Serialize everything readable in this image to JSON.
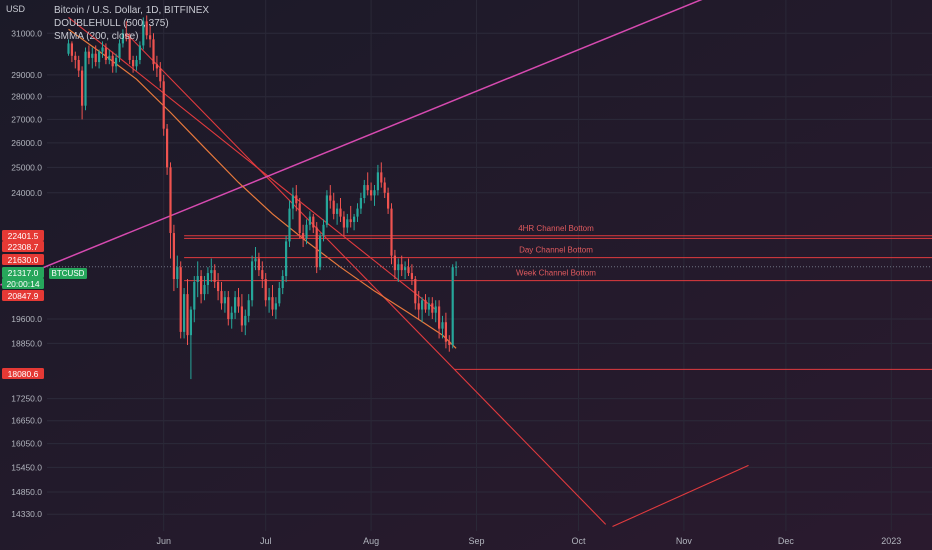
{
  "header": {
    "title": "Bitcoin / U.S. Dollar, 1D, BITFINEX",
    "indicator1": "DOUBLEHULL (500, 375)",
    "indicator2": "SMMA (200, close)",
    "unit": "USD"
  },
  "colors": {
    "background": "#1e1b2b",
    "up_candle": "#26a69a",
    "down_candle": "#ef5350",
    "channel_lines": "#e03a3e",
    "magenta_trend": "#d64ab0",
    "hull_curve": "#e8793c",
    "price_badge": "#26a65b",
    "level_badge": "#e53935"
  },
  "chart_data": {
    "type": "candlestick",
    "symbol": "BTCUSD",
    "x_ticks": [
      "Jun",
      "Jul",
      "Aug",
      "Sep",
      "Oct",
      "Nov",
      "Dec",
      "2023"
    ],
    "y_ticks": [
      31000.0,
      29000.0,
      28000.0,
      27000.0,
      26000.0,
      25000.0,
      24000.0,
      19600.0,
      18850.0,
      17250.0,
      16650.0,
      16050.0,
      15450.0,
      14850.0,
      14330.0
    ],
    "y_range": [
      13950,
      32700
    ],
    "y_scale": "log",
    "price_badges": [
      {
        "value": "22401.5",
        "kind": "level"
      },
      {
        "value": "22308.7",
        "kind": "level"
      },
      {
        "value": "21630.0",
        "kind": "level"
      },
      {
        "value": "21317.0",
        "kind": "price"
      },
      {
        "value": "20:00:14",
        "kind": "countdown"
      },
      {
        "value": "20847.9",
        "kind": "level"
      },
      {
        "value": "18080.6",
        "kind": "level"
      }
    ],
    "horizontal_levels": [
      {
        "label": "4HR Channel Bottom",
        "value": 22401.5
      },
      {
        "label": "Day Channel Bottom",
        "value": 21630.0
      },
      {
        "label": "Week Channel Bottom",
        "value": 20847.9
      },
      {
        "label": "",
        "value": 22308.7
      },
      {
        "label": "",
        "value": 18080.6
      }
    ],
    "ohlc_daily_start": "2022-05-04",
    "ohlc": [
      [
        30000,
        30700,
        29900,
        30500
      ],
      [
        30500,
        30600,
        29600,
        29900
      ],
      [
        29900,
        30100,
        29300,
        29700
      ],
      [
        29700,
        29900,
        28900,
        29200
      ],
      [
        29200,
        29400,
        27000,
        27600
      ],
      [
        27600,
        30300,
        27400,
        30100
      ],
      [
        30100,
        30400,
        29500,
        29800
      ],
      [
        29800,
        30300,
        29300,
        30000
      ],
      [
        30000,
        30400,
        29400,
        29600
      ],
      [
        29600,
        30200,
        29300,
        30100
      ],
      [
        30100,
        30600,
        29800,
        30300
      ],
      [
        30300,
        30500,
        29500,
        29700
      ],
      [
        29700,
        30200,
        29500,
        29900
      ],
      [
        29900,
        30100,
        29100,
        29400
      ],
      [
        29400,
        30000,
        29100,
        29800
      ],
      [
        29800,
        30700,
        29600,
        30500
      ],
      [
        30500,
        31200,
        30300,
        31000
      ],
      [
        31000,
        31600,
        30600,
        30800
      ],
      [
        30800,
        31000,
        29500,
        29700
      ],
      [
        29700,
        29900,
        29100,
        29400
      ],
      [
        29400,
        29900,
        29200,
        29700
      ],
      [
        29700,
        30600,
        29500,
        30400
      ],
      [
        30400,
        31800,
        30200,
        31600
      ],
      [
        31600,
        31900,
        30700,
        30900
      ],
      [
        30900,
        31400,
        30300,
        30700
      ],
      [
        30700,
        31000,
        29200,
        29500
      ],
      [
        29500,
        29900,
        28900,
        29300
      ],
      [
        29300,
        29600,
        28400,
        28700
      ],
      [
        28700,
        29000,
        26300,
        26600
      ],
      [
        26600,
        26800,
        24700,
        25000
      ],
      [
        25000,
        25200,
        21600,
        22500
      ],
      [
        22500,
        22800,
        20500,
        20900
      ],
      [
        20900,
        21700,
        20600,
        21300
      ],
      [
        21300,
        21500,
        19000,
        19200
      ],
      [
        19200,
        20600,
        19000,
        20400
      ],
      [
        20400,
        20900,
        18800,
        19100
      ],
      [
        19100,
        20000,
        17800,
        19900
      ],
      [
        19900,
        21000,
        19500,
        20800
      ],
      [
        20800,
        21500,
        20300,
        21000
      ],
      [
        21000,
        21200,
        20100,
        20400
      ],
      [
        20400,
        21000,
        20200,
        20700
      ],
      [
        20700,
        21300,
        20400,
        21100
      ],
      [
        21100,
        21600,
        20800,
        21200
      ],
      [
        21200,
        21400,
        20600,
        20800
      ],
      [
        20800,
        21100,
        20200,
        20500
      ],
      [
        20500,
        20800,
        19900,
        20100
      ],
      [
        20100,
        20500,
        19800,
        20300
      ],
      [
        20300,
        20500,
        19400,
        19600
      ],
      [
        19600,
        20000,
        19300,
        19800
      ],
      [
        19800,
        20500,
        19600,
        20300
      ],
      [
        20300,
        20600,
        19800,
        20000
      ],
      [
        20000,
        20400,
        19200,
        19400
      ],
      [
        19400,
        19900,
        19100,
        19700
      ],
      [
        19700,
        20400,
        19500,
        20200
      ],
      [
        20200,
        21700,
        20000,
        21500
      ],
      [
        21500,
        22000,
        21200,
        21600
      ],
      [
        21600,
        21800,
        21000,
        21200
      ],
      [
        21200,
        21500,
        20600,
        20900
      ],
      [
        20900,
        21100,
        20000,
        20200
      ],
      [
        20200,
        20600,
        19800,
        20300
      ],
      [
        20300,
        20700,
        19700,
        19900
      ],
      [
        19900,
        20300,
        19600,
        20100
      ],
      [
        20100,
        20800,
        20000,
        20600
      ],
      [
        20600,
        21200,
        20400,
        21000
      ],
      [
        21000,
        22400,
        20800,
        22200
      ],
      [
        22200,
        23700,
        22000,
        23400
      ],
      [
        23400,
        24200,
        23000,
        23900
      ],
      [
        23900,
        24300,
        23300,
        23600
      ],
      [
        23600,
        23800,
        22300,
        22500
      ],
      [
        22500,
        22800,
        22000,
        22300
      ],
      [
        22300,
        23000,
        22100,
        22800
      ],
      [
        22800,
        23300,
        22600,
        23100
      ],
      [
        23100,
        23200,
        22500,
        22700
      ],
      [
        22700,
        22900,
        21100,
        21300
      ],
      [
        21300,
        22500,
        21200,
        22400
      ],
      [
        22400,
        23000,
        22200,
        22800
      ],
      [
        22800,
        24100,
        22700,
        23900
      ],
      [
        23900,
        24300,
        23400,
        23700
      ],
      [
        23700,
        24000,
        23000,
        23200
      ],
      [
        23200,
        23600,
        22800,
        23400
      ],
      [
        23400,
        23800,
        22900,
        23100
      ],
      [
        23100,
        23300,
        22400,
        22700
      ],
      [
        22700,
        23200,
        22500,
        23000
      ],
      [
        23000,
        23500,
        22700,
        22900
      ],
      [
        22900,
        23200,
        22600,
        23100
      ],
      [
        23100,
        23600,
        22900,
        23400
      ],
      [
        23400,
        24000,
        23200,
        23800
      ],
      [
        23800,
        24500,
        23600,
        24300
      ],
      [
        24300,
        24800,
        23900,
        24100
      ],
      [
        24100,
        24400,
        23700,
        23900
      ],
      [
        23900,
        24300,
        23500,
        24100
      ],
      [
        24100,
        25100,
        23900,
        24800
      ],
      [
        24800,
        25200,
        24200,
        24400
      ],
      [
        24400,
        24600,
        23800,
        24000
      ],
      [
        24000,
        24200,
        23200,
        23400
      ],
      [
        23400,
        23600,
        21400,
        21700
      ],
      [
        21700,
        21900,
        20900,
        21200
      ],
      [
        21200,
        21600,
        20800,
        21400
      ],
      [
        21400,
        21700,
        21000,
        21200
      ],
      [
        21200,
        21500,
        20900,
        21300
      ],
      [
        21300,
        21600,
        21000,
        21100
      ],
      [
        21100,
        21400,
        20700,
        20900
      ],
      [
        20900,
        21000,
        19900,
        20100
      ],
      [
        20100,
        20500,
        19600,
        19900
      ],
      [
        19900,
        20300,
        19500,
        20200
      ],
      [
        20200,
        20400,
        19800,
        19900
      ],
      [
        19900,
        20300,
        19700,
        20100
      ],
      [
        20100,
        20300,
        19600,
        19800
      ],
      [
        19800,
        20200,
        19500,
        20000
      ],
      [
        20000,
        20200,
        19000,
        19300
      ],
      [
        19300,
        19700,
        19000,
        19500
      ],
      [
        19500,
        19800,
        18700,
        18900
      ],
      [
        18900,
        19100,
        18600,
        18800
      ],
      [
        18800,
        21400,
        18700,
        21300
      ],
      [
        21300,
        21500,
        21000,
        21317
      ]
    ],
    "hull_curve": [
      [
        0,
        31200
      ],
      [
        10,
        30000
      ],
      [
        20,
        28800
      ],
      [
        30,
        27300
      ],
      [
        40,
        25800
      ],
      [
        50,
        24400
      ],
      [
        60,
        23200
      ],
      [
        70,
        22200
      ],
      [
        80,
        21300
      ],
      [
        90,
        20500
      ],
      [
        100,
        19800
      ],
      [
        110,
        19100
      ],
      [
        114,
        18700
      ]
    ],
    "channel_lines": [
      {
        "from": [
          17,
          31000
        ],
        "to": [
          158,
          14100
        ]
      },
      {
        "from": [
          0,
          31800
        ],
        "to": [
          108,
          19900
        ]
      },
      {
        "from": [
          -20,
          20700
        ],
        "to": [
          190,
          33000
        ]
      },
      {
        "from": [
          160,
          14050
        ],
        "to": [
          200,
          15500
        ]
      }
    ]
  }
}
